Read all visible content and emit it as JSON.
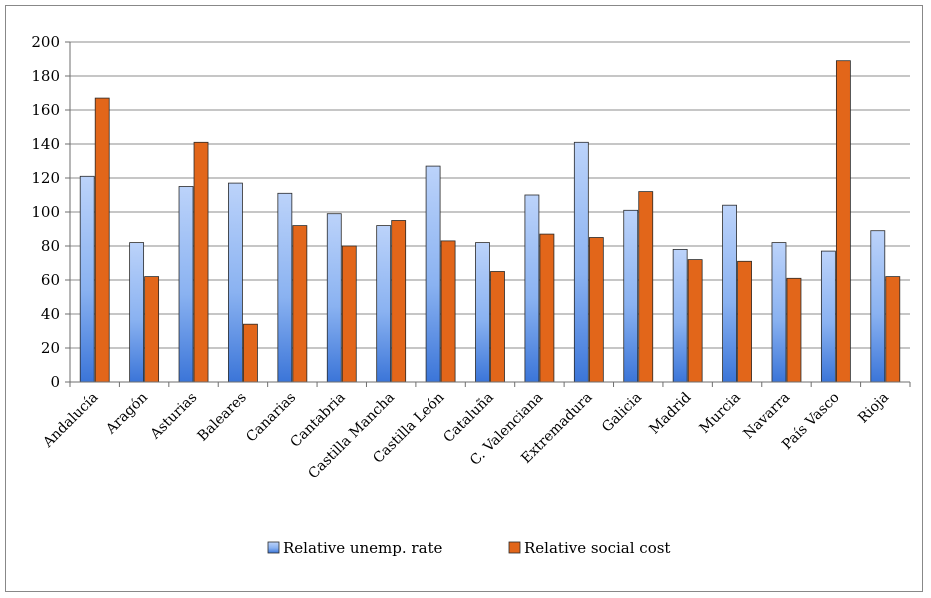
{
  "chart_data": {
    "type": "bar",
    "title": "",
    "xlabel": "",
    "ylabel": "",
    "ylim": [
      0,
      200
    ],
    "yticks": [
      0,
      20,
      40,
      60,
      80,
      100,
      120,
      140,
      160,
      180,
      200
    ],
    "grid": true,
    "legend_position": "bottom",
    "categories": [
      "Andalucía",
      "Aragón",
      "Asturias",
      "Baleares",
      "Canarias",
      "Cantabria",
      "Castilla Mancha",
      "Castilla León",
      "Cataluña",
      "C. Valenciana",
      "Extremadura",
      "Galicia",
      "Madrid",
      "Murcia",
      "Navarra",
      "País Vasco",
      "Rioja"
    ],
    "series": [
      {
        "name": "Relative unemp. rate",
        "color": "#6f9fe6",
        "values": [
          121,
          82,
          115,
          117,
          111,
          99,
          92,
          127,
          82,
          110,
          141,
          101,
          78,
          104,
          82,
          77,
          89
        ]
      },
      {
        "name": "Relative social cost",
        "color": "#e2661a",
        "values": [
          167,
          62,
          141,
          34,
          92,
          80,
          95,
          83,
          65,
          87,
          85,
          112,
          72,
          71,
          61,
          189,
          62
        ]
      }
    ]
  }
}
